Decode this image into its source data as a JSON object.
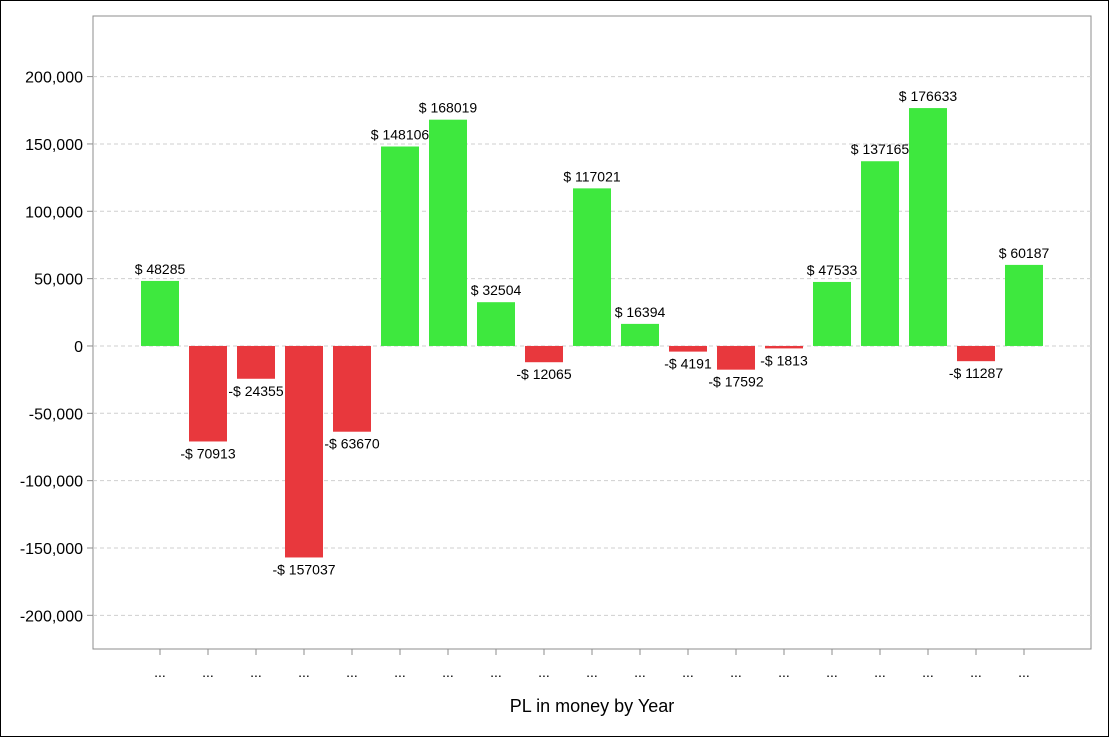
{
  "chart_data": {
    "type": "bar",
    "xlabel": "PL in money by Year",
    "ylabel": "",
    "ylim": [
      -225000,
      245000
    ],
    "yticks": [
      -200000,
      -150000,
      -100000,
      -50000,
      0,
      50000,
      100000,
      150000,
      200000
    ],
    "ytick_labels": [
      "-200,000",
      "-150,000",
      "-100,000",
      "-50,000",
      "0",
      "50,000",
      "100,000",
      "150,000",
      "200,000"
    ],
    "grid": true,
    "legend": "none",
    "positive_color": "#3ee83e",
    "negative_color": "#e8383d",
    "categories": [
      "...",
      "...",
      "...",
      "...",
      "...",
      "...",
      "...",
      "...",
      "...",
      "...",
      "...",
      "...",
      "...",
      "...",
      "...",
      "...",
      "...",
      "...",
      "..."
    ],
    "values": [
      48285,
      -70913,
      -24355,
      -157037,
      -63670,
      148106,
      168019,
      32504,
      -12065,
      117021,
      16394,
      -4191,
      -17592,
      -1813,
      47533,
      137165,
      176633,
      -11287,
      60187
    ],
    "data_labels": [
      "$ 48285",
      "-$ 70913",
      "-$ 24355",
      "-$ 157037",
      "-$ 63670",
      "$ 148106",
      "$ 168019",
      "$ 32504",
      "-$ 12065",
      "$ 117021",
      "$ 16394",
      "-$ 4191",
      "-$ 17592",
      "-$ 1813",
      "$ 47533",
      "$ 137165",
      "$ 176633",
      "-$ 11287",
      "$ 60187"
    ]
  }
}
